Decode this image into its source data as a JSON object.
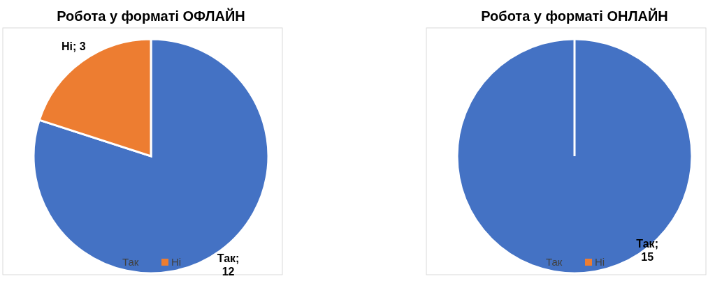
{
  "chart_data": [
    {
      "type": "pie",
      "title": "Робота у форматі ОФЛАЙН",
      "categories": [
        "Так",
        "Ні"
      ],
      "values": [
        12,
        3
      ],
      "colors": [
        "#4472c4",
        "#ed7d31"
      ],
      "value_labels": [
        "Так; 12",
        "Ні; 3"
      ],
      "legend": "bottom"
    },
    {
      "type": "pie",
      "title": "Робота у форматі ОНЛАЙН",
      "categories": [
        "Так",
        "Ні"
      ],
      "values": [
        15,
        0
      ],
      "colors": [
        "#4472c4",
        "#ed7d31"
      ],
      "value_labels": [
        "Так; 15",
        null
      ],
      "legend": "bottom"
    }
  ]
}
